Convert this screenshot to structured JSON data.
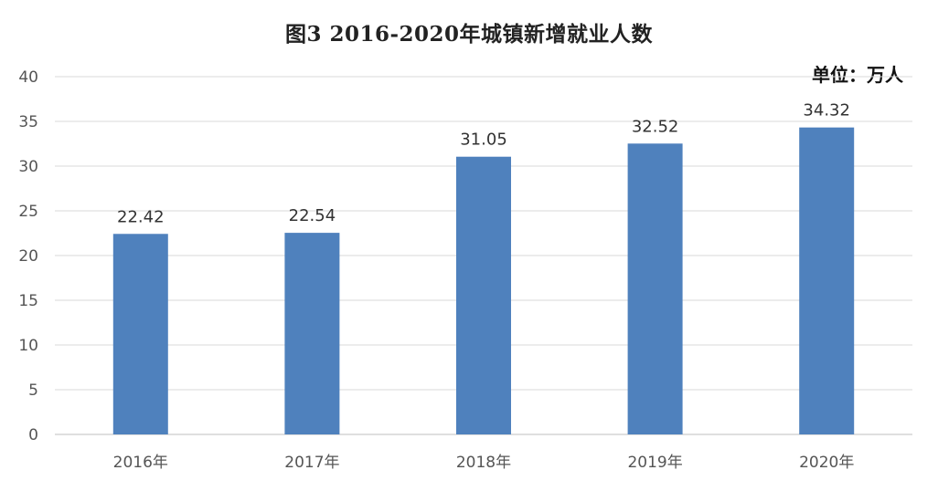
{
  "chart_data": {
    "type": "bar",
    "title": "图3   2016-2020年城镇新增就业人数",
    "unit": "单位：万人",
    "categories": [
      "2016年",
      "2017年",
      "2018年",
      "2019年",
      "2020年"
    ],
    "values": [
      22.42,
      22.54,
      31.05,
      32.52,
      34.32
    ],
    "data_labels": [
      "22.42",
      "22.54",
      "31.05",
      "32.52",
      "34.32"
    ],
    "xlabel": "",
    "ylabel": "",
    "ylim": [
      0,
      40
    ],
    "yticks": [
      "0",
      "5",
      "10",
      "15",
      "20",
      "25",
      "30",
      "35",
      "40"
    ],
    "grid": true,
    "legend": "none",
    "bar_color": "#4f81bd",
    "grid_color": "#d9d9d9",
    "axis_color": "#bfbfbf"
  }
}
